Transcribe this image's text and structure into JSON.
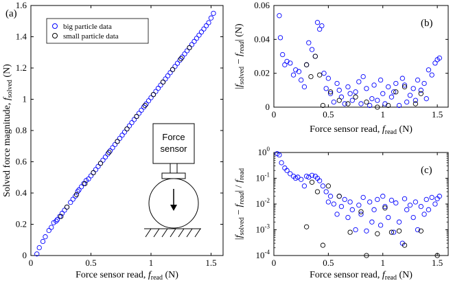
{
  "colors": {
    "big": "#0000ff",
    "small": "#000000"
  },
  "chart_data": [
    {
      "panel": "(a)",
      "type": "scatter",
      "xlabel": "Force sensor read, f_read (N)",
      "ylabel": "Solved force magnitude, f_solved (N)",
      "xlim": [
        0,
        1.6
      ],
      "ylim": [
        0,
        1.6
      ],
      "xticks": [
        "0",
        "0.5",
        "1",
        "1.5"
      ],
      "yticks": [
        "0",
        "0.2",
        "0.4",
        "0.6",
        "0.8",
        "1",
        "1.2",
        "1.4",
        "1.6"
      ],
      "legend": {
        "position": "top-left",
        "entries": [
          "big particle data",
          "small particle data"
        ]
      },
      "inset_diagram": {
        "box_label_line1": "Force",
        "box_label_line2": "sensor"
      },
      "series": [
        {
          "name": "big particle data",
          "x": [
            0.05,
            0.07,
            0.1,
            0.12,
            0.15,
            0.17,
            0.19,
            0.21,
            0.22,
            0.24,
            0.26,
            0.28,
            0.3,
            0.33,
            0.35,
            0.37,
            0.39,
            0.4,
            0.42,
            0.44,
            0.46,
            0.48,
            0.5,
            0.52,
            0.54,
            0.56,
            0.58,
            0.6,
            0.62,
            0.64,
            0.66,
            0.68,
            0.7,
            0.72,
            0.74,
            0.76,
            0.78,
            0.8,
            0.82,
            0.84,
            0.86,
            0.88,
            0.9,
            0.92,
            0.94,
            0.96,
            0.98,
            1.0,
            1.02,
            1.04,
            1.06,
            1.08,
            1.1,
            1.12,
            1.14,
            1.16,
            1.18,
            1.2,
            1.22,
            1.24,
            1.26,
            1.28,
            1.3,
            1.32,
            1.34,
            1.36,
            1.38,
            1.4,
            1.42,
            1.44,
            1.46,
            1.48,
            1.5,
            1.52
          ],
          "y": [
            0.01,
            0.05,
            0.09,
            0.12,
            0.16,
            0.18,
            0.21,
            0.22,
            0.23,
            0.25,
            0.27,
            0.29,
            0.31,
            0.34,
            0.36,
            0.38,
            0.41,
            0.42,
            0.44,
            0.46,
            0.48,
            0.49,
            0.51,
            0.53,
            0.55,
            0.57,
            0.59,
            0.61,
            0.63,
            0.65,
            0.67,
            0.69,
            0.71,
            0.73,
            0.75,
            0.77,
            0.79,
            0.81,
            0.83,
            0.85,
            0.87,
            0.89,
            0.91,
            0.93,
            0.95,
            0.97,
            0.99,
            1.01,
            1.03,
            1.05,
            1.07,
            1.09,
            1.11,
            1.13,
            1.15,
            1.17,
            1.19,
            1.21,
            1.23,
            1.25,
            1.27,
            1.29,
            1.31,
            1.33,
            1.35,
            1.37,
            1.39,
            1.41,
            1.43,
            1.45,
            1.47,
            1.49,
            1.52,
            1.55
          ]
        },
        {
          "name": "small particle data",
          "x": [
            0.25,
            0.3,
            0.38,
            0.45,
            0.52,
            0.58,
            0.65,
            0.72,
            0.8,
            0.88,
            0.95,
            1.02,
            1.1,
            1.18,
            1.25,
            1.32
          ],
          "y": [
            0.25,
            0.31,
            0.39,
            0.46,
            0.53,
            0.59,
            0.66,
            0.73,
            0.81,
            0.89,
            0.96,
            1.03,
            1.11,
            1.19,
            1.26,
            1.33
          ]
        }
      ]
    },
    {
      "panel": "(b)",
      "type": "scatter",
      "xlabel": "Force sensor read, f_read (N)",
      "ylabel": "|f_solved − f_read| (N)",
      "xlim": [
        0,
        1.6
      ],
      "ylim": [
        0,
        0.06
      ],
      "xticks": [
        "0",
        "0.5",
        "1",
        "1.5"
      ],
      "yticks": [
        "0",
        "0.02",
        "0.04",
        "0.06"
      ],
      "series": [
        {
          "name": "big particle data",
          "x": [
            0.05,
            0.06,
            0.08,
            0.1,
            0.12,
            0.15,
            0.18,
            0.2,
            0.23,
            0.25,
            0.28,
            0.3,
            0.32,
            0.35,
            0.38,
            0.4,
            0.42,
            0.44,
            0.46,
            0.48,
            0.5,
            0.52,
            0.55,
            0.58,
            0.6,
            0.62,
            0.65,
            0.68,
            0.7,
            0.72,
            0.75,
            0.78,
            0.8,
            0.82,
            0.85,
            0.88,
            0.9,
            0.92,
            0.95,
            0.98,
            1.0,
            1.02,
            1.05,
            1.08,
            1.1,
            1.12,
            1.15,
            1.18,
            1.2,
            1.22,
            1.25,
            1.28,
            1.3,
            1.32,
            1.35,
            1.38,
            1.4,
            1.42,
            1.45,
            1.48,
            1.5,
            1.52
          ],
          "y": [
            0.054,
            0.041,
            0.031,
            0.025,
            0.027,
            0.026,
            0.019,
            0.022,
            0.021,
            0.016,
            0.012,
            0.025,
            0.038,
            0.034,
            0.03,
            0.05,
            0.046,
            0.048,
            0.02,
            0.011,
            0.017,
            0.008,
            0.003,
            0.014,
            0.01,
            0.006,
            0.002,
            0.012,
            0.008,
            0.004,
            0.009,
            0.015,
            0.002,
            0.018,
            0.011,
            0.001,
            0.005,
            0.013,
            0.004,
            0.016,
            0.008,
            0.002,
            0.012,
            0.006,
            0.009,
            0.014,
            0.001,
            0.017,
            0.013,
            0.003,
            0.007,
            0.011,
            0.004,
            0.016,
            0.01,
            0.014,
            0.005,
            0.022,
            0.019,
            0.026,
            0.028,
            0.029
          ]
        },
        {
          "name": "small particle data",
          "x": [
            0.3,
            0.34,
            0.38,
            0.42,
            0.45,
            0.52,
            0.6,
            0.68,
            0.75,
            0.85,
            0.95,
            1.05,
            1.12,
            1.2,
            1.3,
            1.35
          ],
          "y": [
            0.025,
            0.018,
            0.03,
            0.019,
            0.001,
            0.009,
            0.004,
            0.002,
            0.006,
            0.003,
            0.0,
            0.001,
            0.009,
            0.012,
            0.002,
            0.008
          ]
        }
      ]
    },
    {
      "panel": "(c)",
      "type": "scatter",
      "xlabel": "Force sensor read, f_read (N)",
      "ylabel": "|f_solved − f_read| / f_read",
      "xlim": [
        0,
        1.6
      ],
      "ylim": [
        0.0001,
        1
      ],
      "yscale": "log",
      "xticks": [
        "0",
        "0.5",
        "1",
        "1.5"
      ],
      "yticks": [
        "10^-4",
        "10^-3",
        "10^-2",
        "10^-1",
        "10^0"
      ],
      "series": [
        {
          "name": "big particle data",
          "x": [
            0.03,
            0.05,
            0.07,
            0.1,
            0.12,
            0.15,
            0.18,
            0.2,
            0.22,
            0.25,
            0.28,
            0.3,
            0.32,
            0.35,
            0.38,
            0.4,
            0.42,
            0.45,
            0.48,
            0.5,
            0.52,
            0.55,
            0.58,
            0.6,
            0.62,
            0.65,
            0.68,
            0.7,
            0.72,
            0.75,
            0.78,
            0.8,
            0.82,
            0.85,
            0.88,
            0.9,
            0.92,
            0.95,
            0.98,
            1.0,
            1.02,
            1.05,
            1.08,
            1.1,
            1.12,
            1.15,
            1.18,
            1.2,
            1.22,
            1.25,
            1.28,
            1.3,
            1.32,
            1.35,
            1.38,
            1.4,
            1.42,
            1.45,
            1.48,
            1.5,
            1.52
          ],
          "y": [
            0.9,
            0.8,
            0.4,
            0.25,
            0.2,
            0.15,
            0.12,
            0.1,
            0.11,
            0.09,
            0.05,
            0.12,
            0.11,
            0.13,
            0.12,
            0.1,
            0.08,
            0.05,
            0.03,
            0.012,
            0.02,
            0.01,
            0.004,
            0.02,
            0.008,
            0.015,
            0.003,
            0.012,
            0.006,
            0.001,
            0.009,
            0.004,
            0.018,
            0.0009,
            0.012,
            0.002,
            0.006,
            0.015,
            0.0015,
            0.02,
            0.008,
            0.003,
            0.014,
            0.0008,
            0.011,
            0.002,
            0.0003,
            0.016,
            0.006,
            0.009,
            0.003,
            0.012,
            0.001,
            0.008,
            0.004,
            0.015,
            0.006,
            0.018,
            0.01,
            0.016,
            0.02
          ]
        },
        {
          "name": "small particle data",
          "x": [
            0.3,
            0.35,
            0.4,
            0.45,
            0.5,
            0.6,
            0.7,
            0.8,
            0.85,
            0.95,
            1.02,
            1.08,
            1.15,
            1.2,
            1.35,
            1.5
          ],
          "y": [
            0.0013,
            0.07,
            0.03,
            0.00025,
            0.05,
            0.02,
            0.0008,
            0.005,
            0.0001,
            0.0007,
            0.007,
            0.0008,
            0.0009,
            0.00025,
            0.0009,
            0.0001
          ]
        }
      ]
    }
  ]
}
